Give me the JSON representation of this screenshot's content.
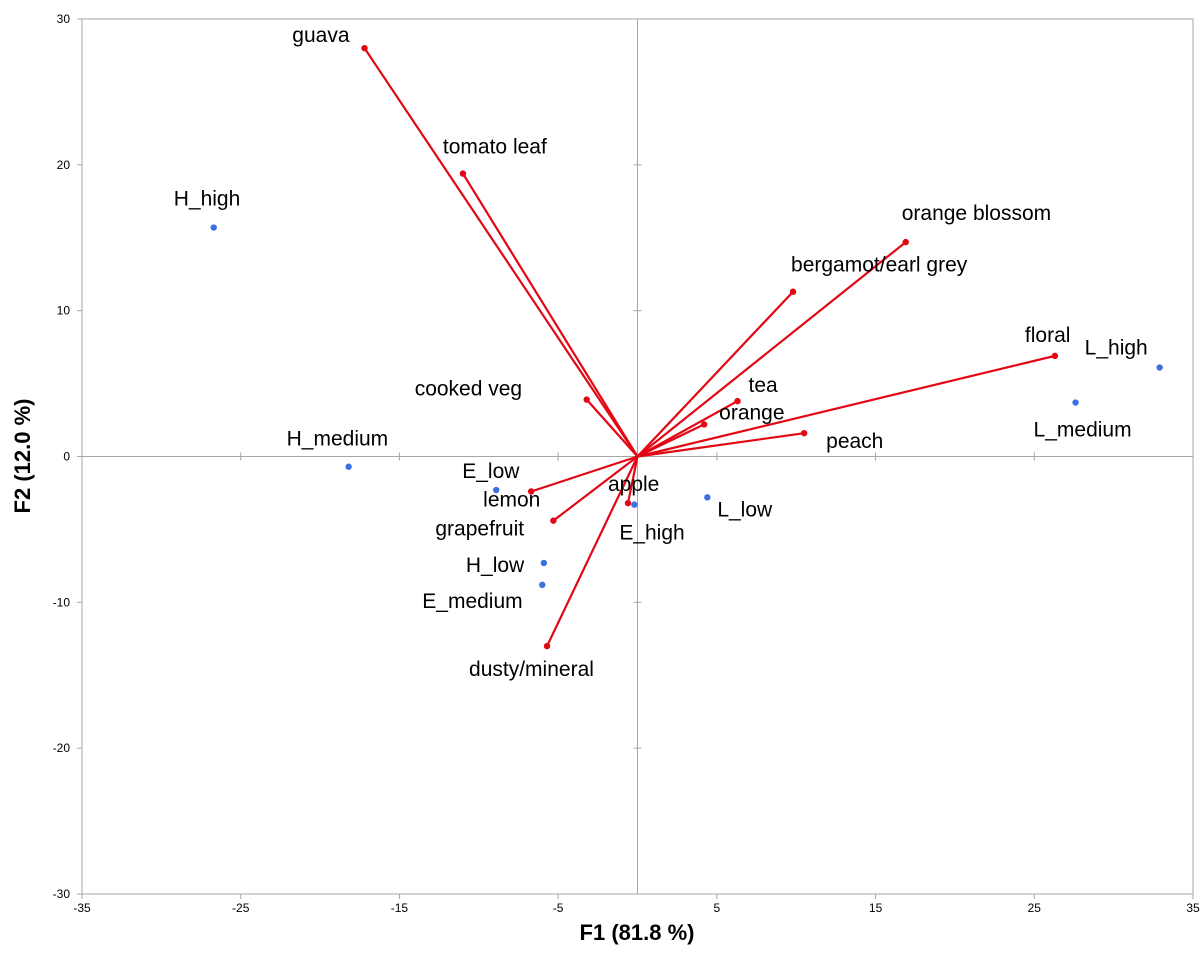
{
  "chart_data": {
    "type": "scatter",
    "title": "",
    "xlabel": "F1 (81.8 %)",
    "ylabel": "F2 (12.0 %)",
    "xlim": [
      -35,
      35
    ],
    "ylim": [
      -30,
      30
    ],
    "x_ticks": [
      -35,
      -25,
      -15,
      -5,
      5,
      15,
      25,
      35
    ],
    "y_ticks": [
      -30,
      -20,
      -10,
      0,
      10,
      20,
      30
    ],
    "grid": false,
    "colors": {
      "variables": "#e30613",
      "observations": "#3b6fe3",
      "axes": "#a6a6a6"
    },
    "variables": [
      {
        "label": "guava",
        "x": -17.2,
        "y": 28.0,
        "dx": -15,
        "dy": -6,
        "anchor": "end"
      },
      {
        "label": "tomato leaf",
        "x": -11.0,
        "y": 19.4,
        "dx": -20,
        "dy": -20,
        "anchor": "start"
      },
      {
        "label": "orange blossom",
        "x": 16.9,
        "y": 14.7,
        "dx": -4,
        "dy": -22,
        "anchor": "start"
      },
      {
        "label": "bergamot/earl grey",
        "x": 9.8,
        "y": 11.3,
        "dx": -2,
        "dy": -20,
        "anchor": "start"
      },
      {
        "label": "floral",
        "x": 26.3,
        "y": 6.9,
        "dx": -30,
        "dy": -14,
        "anchor": "start"
      },
      {
        "label": "cooked veg",
        "x": -3.2,
        "y": 3.9,
        "dx": -172,
        "dy": -4,
        "anchor": "start"
      },
      {
        "label": "tea",
        "x": 6.3,
        "y": 3.8,
        "dx": 11,
        "dy": -9,
        "anchor": "start"
      },
      {
        "label": "orange",
        "x": 4.2,
        "y": 2.2,
        "dx": 15,
        "dy": -5,
        "anchor": "start"
      },
      {
        "label": "peach",
        "x": 10.5,
        "y": 1.6,
        "dx": 22,
        "dy": 15,
        "anchor": "start"
      },
      {
        "label": "lemon",
        "x": -6.7,
        "y": -2.4,
        "dx": -48,
        "dy": 15,
        "anchor": "start"
      },
      {
        "label": "apple",
        "x": -0.6,
        "y": -3.2,
        "dx": -20,
        "dy": -12,
        "anchor": "start"
      },
      {
        "label": "grapefruit",
        "x": -5.3,
        "y": -4.4,
        "dx": -118,
        "dy": 15,
        "anchor": "start"
      },
      {
        "label": "dusty/mineral",
        "x": -5.7,
        "y": -13.0,
        "dx": -78,
        "dy": 30,
        "anchor": "start"
      }
    ],
    "observations": [
      {
        "label": "H_high",
        "x": -26.7,
        "y": 15.7,
        "dx": -40,
        "dy": -22,
        "anchor": "start"
      },
      {
        "label": "H_medium",
        "x": -18.2,
        "y": -0.7,
        "dx": -62,
        "dy": -21,
        "anchor": "start"
      },
      {
        "label": "E_low",
        "x": -8.9,
        "y": -2.3,
        "dx": -34,
        "dy": -12,
        "anchor": "start"
      },
      {
        "label": "E_high",
        "x": -0.2,
        "y": -3.3,
        "dx": -15,
        "dy": 35,
        "anchor": "start"
      },
      {
        "label": "L_low",
        "x": 4.4,
        "y": -2.8,
        "dx": 10,
        "dy": 19,
        "anchor": "start"
      },
      {
        "label": "H_low",
        "x": -5.9,
        "y": -7.3,
        "dx": -78,
        "dy": 9,
        "anchor": "start"
      },
      {
        "label": "E_medium",
        "x": -6.0,
        "y": -8.8,
        "dx": -120,
        "dy": 23,
        "anchor": "start"
      },
      {
        "label": "L_high",
        "x": 32.9,
        "y": 6.1,
        "dx": -75,
        "dy": -13,
        "anchor": "start"
      },
      {
        "label": "L_medium",
        "x": 27.6,
        "y": 3.7,
        "dx": -42,
        "dy": 34,
        "anchor": "start"
      }
    ]
  }
}
